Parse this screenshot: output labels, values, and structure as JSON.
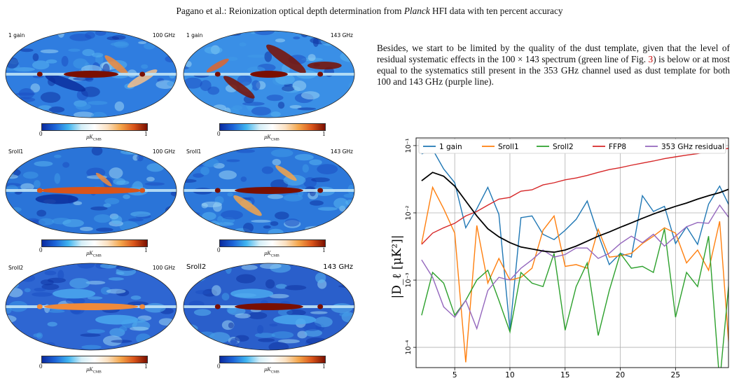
{
  "header": {
    "prefix": "Pagano et al.: Reionization optical depth determination from ",
    "italic": "Planck",
    "suffix": " HFI data with ten percent accuracy"
  },
  "maps": [
    {
      "row_label": "1 gain",
      "freq": "100 GHz",
      "cbar_min": "0",
      "cbar_max": "1",
      "unit": "μK_CMB"
    },
    {
      "row_label": "1 gain",
      "freq": "143 GHz",
      "cbar_min": "0",
      "cbar_max": "1",
      "unit": "μK_CMB"
    },
    {
      "row_label": "Sroll1",
      "freq": "100 GHz",
      "cbar_min": "0",
      "cbar_max": "1",
      "unit": "μK_CMB"
    },
    {
      "row_label": "Sroll1",
      "freq": "143 GHz",
      "cbar_min": "0",
      "cbar_max": "1",
      "unit": "μK_CMB"
    },
    {
      "row_label": "Sroll2",
      "freq": "100 GHz",
      "cbar_min": "0",
      "cbar_max": "1",
      "unit": "μK_CMB"
    },
    {
      "row_label": "Sroll2",
      "freq": "143 GHz",
      "cbar_min": "0",
      "cbar_max": "1",
      "unit": "μK_CMB"
    }
  ],
  "paragraph": {
    "part1": "Besides, we start to be limited by the quality of the dust template, given that the level of residual systematic effects in the 100 × 143 spectrum (green line of Fig. ",
    "figref": "3",
    "part2": ") is below or at most equal to the systematics still present in the 353 GHz channel used as dust template for both 100 and 143 GHz (purple line)."
  },
  "chart_data": {
    "type": "line",
    "ylabel": "|D_ℓ [μK²]|",
    "xlabel": "",
    "ylog": true,
    "xlim": [
      1.5,
      29.8
    ],
    "ylim": [
      5e-05,
      0.13
    ],
    "xticks": [
      5,
      10,
      15,
      20,
      25
    ],
    "yticks": [
      {
        "value": 0.0001,
        "label": "10⁻⁴"
      },
      {
        "value": 0.001,
        "label": "10⁻³"
      },
      {
        "value": 0.01,
        "label": "10⁻²"
      },
      {
        "value": 0.1,
        "label": "10⁻¹"
      }
    ],
    "grid": true,
    "legend_position": "top",
    "series": [
      {
        "name": "1 gain",
        "color": "#1f77b4",
        "x": [
          2,
          3,
          4,
          5,
          6,
          7,
          8,
          9,
          10,
          11,
          12,
          13,
          14,
          15,
          16,
          17,
          18,
          19,
          20,
          21,
          22,
          23,
          24,
          25,
          26,
          27,
          28,
          29,
          30
        ],
        "y": [
          0.075,
          0.088,
          0.045,
          0.028,
          0.006,
          0.0115,
          0.024,
          0.0095,
          0.00018,
          0.0085,
          0.009,
          0.0048,
          0.004,
          0.0055,
          0.008,
          0.015,
          0.0048,
          0.0017,
          0.0025,
          0.0022,
          0.018,
          0.0105,
          0.0125,
          0.0035,
          0.0062,
          0.0034,
          0.0135,
          0.025,
          0.0115
        ]
      },
      {
        "name": "Sroll1",
        "color": "#ff7f0e",
        "x": [
          2,
          3,
          4,
          5,
          6,
          7,
          8,
          9,
          10,
          11,
          12,
          13,
          14,
          15,
          16,
          17,
          18,
          19,
          20,
          21,
          22,
          23,
          24,
          25,
          26,
          27,
          28,
          29,
          30
        ],
        "y": [
          0.0035,
          0.024,
          0.0115,
          0.005,
          6e-05,
          0.0065,
          0.0009,
          0.0021,
          0.001,
          0.0011,
          0.0015,
          0.0055,
          0.009,
          0.0016,
          0.0017,
          0.0015,
          0.0057,
          0.0022,
          0.0023,
          0.0025,
          0.0035,
          0.0045,
          0.006,
          0.005,
          0.0018,
          0.0028,
          0.0014,
          0.0075,
          4.5e-05
        ]
      },
      {
        "name": "Sroll2",
        "color": "#2ca02c",
        "x": [
          2,
          3,
          4,
          5,
          6,
          7,
          8,
          9,
          10,
          11,
          12,
          13,
          14,
          15,
          16,
          17,
          18,
          19,
          20,
          21,
          22,
          23,
          24,
          25,
          26,
          27,
          28,
          29,
          30
        ],
        "y": [
          0.0003,
          0.0013,
          0.0009,
          0.0003,
          0.0005,
          0.001,
          0.0014,
          0.0005,
          0.00017,
          0.0013,
          0.0009,
          0.0008,
          0.0025,
          0.00018,
          0.0008,
          0.0018,
          0.00015,
          0.0007,
          0.0025,
          0.0015,
          0.0016,
          0.0013,
          0.0058,
          0.00028,
          0.0013,
          0.0008,
          0.0045,
          3e-05,
          0.0018
        ]
      },
      {
        "name": "FFP8",
        "color": "#d62728",
        "x": [
          2,
          3,
          4,
          5,
          6,
          7,
          8,
          9,
          10,
          11,
          12,
          13,
          14,
          15,
          16,
          17,
          18,
          19,
          20,
          21,
          22,
          23,
          24,
          25,
          26,
          27,
          28,
          29,
          30
        ],
        "y": [
          0.0034,
          0.005,
          0.006,
          0.007,
          0.009,
          0.0105,
          0.013,
          0.016,
          0.017,
          0.021,
          0.022,
          0.026,
          0.028,
          0.031,
          0.033,
          0.036,
          0.04,
          0.044,
          0.047,
          0.051,
          0.055,
          0.059,
          0.064,
          0.068,
          0.072,
          0.076,
          0.082,
          0.087,
          0.092
        ]
      },
      {
        "name": "353 GHz residual",
        "color": "#9467bd",
        "x": [
          2,
          3,
          4,
          5,
          6,
          7,
          8,
          9,
          10,
          11,
          12,
          13,
          14,
          15,
          16,
          17,
          18,
          19,
          20,
          21,
          22,
          23,
          24,
          25,
          26,
          27,
          28,
          29,
          30
        ],
        "y": [
          0.002,
          0.0011,
          0.0004,
          0.00028,
          0.0005,
          0.00019,
          0.0007,
          0.0011,
          0.001,
          0.0015,
          0.002,
          0.0028,
          0.0022,
          0.0024,
          0.003,
          0.003,
          0.0021,
          0.0025,
          0.0035,
          0.0045,
          0.0036,
          0.0048,
          0.0032,
          0.0045,
          0.0062,
          0.0072,
          0.007,
          0.013,
          0.0078
        ]
      },
      {
        "name": "",
        "color": "#000000",
        "x": [
          2,
          3,
          4,
          5,
          6,
          7,
          8,
          9,
          10,
          11,
          12,
          13,
          14,
          15,
          16,
          17,
          18,
          19,
          20,
          21,
          22,
          23,
          24,
          25,
          26,
          27,
          28,
          29,
          30
        ],
        "y": [
          0.03,
          0.04,
          0.035,
          0.025,
          0.015,
          0.009,
          0.0058,
          0.0044,
          0.0036,
          0.0031,
          0.0029,
          0.0027,
          0.0026,
          0.0028,
          0.0032,
          0.0038,
          0.0045,
          0.0052,
          0.0061,
          0.0071,
          0.0083,
          0.0096,
          0.011,
          0.0125,
          0.014,
          0.016,
          0.018,
          0.02,
          0.023
        ]
      }
    ]
  }
}
